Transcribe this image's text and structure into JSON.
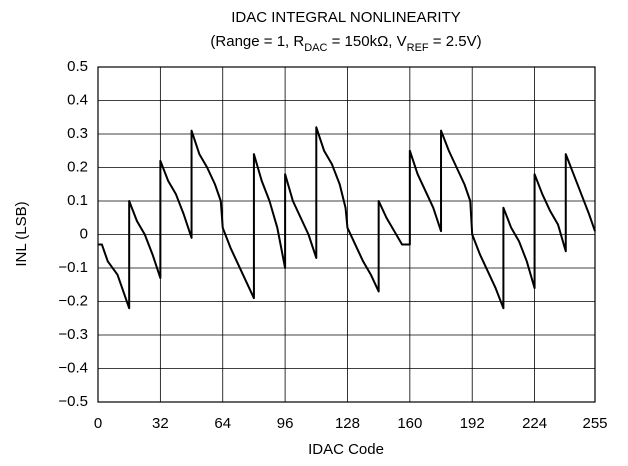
{
  "chart_data": {
    "type": "line",
    "title": "IDAC INTEGRAL NONLINEARITY",
    "subtitle": [
      "(Range = 1, R",
      "DAC",
      " = 150kΩ, V",
      "REF",
      " = 2.5V)"
    ],
    "x_label": "IDAC Code",
    "y_label": "INL (LSB)",
    "xlim": [
      0,
      255
    ],
    "xticks": [
      0,
      32,
      64,
      96,
      128,
      160,
      192,
      224,
      255
    ],
    "ylim": [
      -0.5,
      0.5
    ],
    "yticks": [
      {
        "value": -0.5,
        "label": "−0.5"
      },
      {
        "value": -0.4,
        "label": "−0.4"
      },
      {
        "value": -0.3,
        "label": "−0.3"
      },
      {
        "value": -0.2,
        "label": "−0.2"
      },
      {
        "value": -0.1,
        "label": "−0.1"
      },
      0,
      0.1,
      0.2,
      0.3,
      0.4,
      0.5
    ],
    "grid": true,
    "series": [
      {
        "color": "#000000",
        "x": [
          0,
          2,
          5,
          10,
          13,
          16,
          16,
          20,
          24,
          28,
          32,
          32,
          36,
          40,
          44,
          48,
          48,
          52,
          56,
          60,
          63,
          64,
          68,
          72,
          76,
          80,
          80,
          84,
          88,
          92,
          96,
          96,
          100,
          104,
          108,
          112,
          112,
          116,
          120,
          124,
          127,
          128,
          132,
          136,
          140,
          144,
          144,
          148,
          152,
          156,
          160,
          160,
          164,
          168,
          172,
          176,
          176,
          180,
          184,
          188,
          191,
          192,
          196,
          200,
          204,
          208,
          208,
          212,
          216,
          220,
          224,
          224,
          228,
          232,
          236,
          240,
          240,
          244,
          248,
          252,
          255
        ],
        "values": [
          -0.03,
          -0.03,
          -0.08,
          -0.12,
          -0.17,
          -0.22,
          0.1,
          0.04,
          0.0,
          -0.06,
          -0.13,
          0.22,
          0.16,
          0.12,
          0.06,
          -0.01,
          0.31,
          0.24,
          0.2,
          0.15,
          0.1,
          0.02,
          -0.04,
          -0.09,
          -0.14,
          -0.19,
          0.24,
          0.16,
          0.1,
          0.02,
          -0.1,
          0.18,
          0.1,
          0.05,
          0.0,
          -0.07,
          0.32,
          0.25,
          0.21,
          0.15,
          0.08,
          0.02,
          -0.03,
          -0.08,
          -0.12,
          -0.17,
          0.1,
          0.05,
          0.01,
          -0.03,
          -0.03,
          0.25,
          0.18,
          0.13,
          0.08,
          0.01,
          0.31,
          0.25,
          0.2,
          0.15,
          0.1,
          0.0,
          -0.06,
          -0.11,
          -0.16,
          -0.22,
          0.08,
          0.02,
          -0.02,
          -0.08,
          -0.16,
          0.18,
          0.12,
          0.07,
          0.03,
          -0.05,
          0.24,
          0.18,
          0.12,
          0.06,
          0.01
        ]
      }
    ]
  }
}
